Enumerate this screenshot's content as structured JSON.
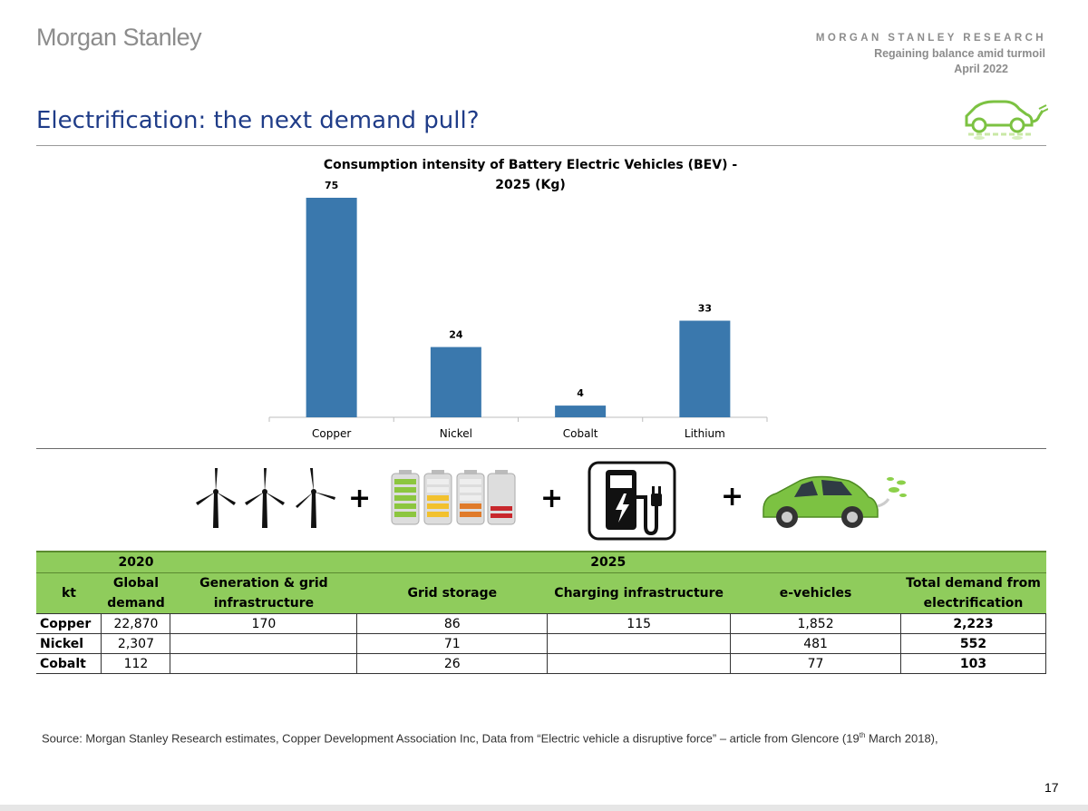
{
  "brand": "Morgan Stanley",
  "header": {
    "research": "MORGAN STANLEY RESEARCH",
    "report": "Regaining balance amid turmoil",
    "date": "April 2022"
  },
  "page_title": "Electrification: the next demand pull?",
  "chart_data": {
    "type": "bar",
    "title": "Consumption intensity of Battery Electric Vehicles (BEV) - 2025 (Kg)",
    "title_lines": [
      "Consumption intensity of Battery Electric Vehicles (BEV) -",
      "2025 (Kg)"
    ],
    "categories": [
      "Copper",
      "Nickel",
      "Cobalt",
      "Lithium"
    ],
    "values": [
      75,
      24,
      4,
      33
    ],
    "xlabel": "",
    "ylabel": "",
    "ylim": [
      0,
      75
    ],
    "grid": false,
    "bar_color": "#3a78ad"
  },
  "icons": [
    "wind-turbine-icon",
    "battery-storage-icon",
    "ev-charger-icon",
    "electric-car-icon"
  ],
  "table": {
    "year_2020": "2020",
    "year_2025": "2025",
    "headers": [
      "kt",
      "Global demand",
      "Generation & grid infrastructure",
      "Grid storage",
      "Charging infrastructure",
      "e-vehicles",
      "Total demand from electrification"
    ],
    "rows": [
      {
        "metal": "Copper",
        "global": "22,870",
        "generation": "170",
        "storage": "86",
        "charging": "115",
        "evehicles": "1,852",
        "total": "2,223"
      },
      {
        "metal": "Nickel",
        "global": "2,307",
        "generation": "",
        "storage": "71",
        "charging": "",
        "evehicles": "481",
        "total": "552"
      },
      {
        "metal": "Cobalt",
        "global": "112",
        "generation": "",
        "storage": "26",
        "charging": "",
        "evehicles": "77",
        "total": "103"
      }
    ]
  },
  "source": {
    "before_sup": "Source: Morgan Stanley Research estimates, Copper Development Association Inc, Data from “Electric vehicle a disruptive force” – article from Glencore (19",
    "sup": "th",
    "after_sup": " March 2018),"
  },
  "page_number": "17",
  "colors": {
    "title_blue": "#1f3c88",
    "table_green": "#8fcc5c",
    "bar_blue": "#3a78ad",
    "car_green": "#7cc242"
  }
}
